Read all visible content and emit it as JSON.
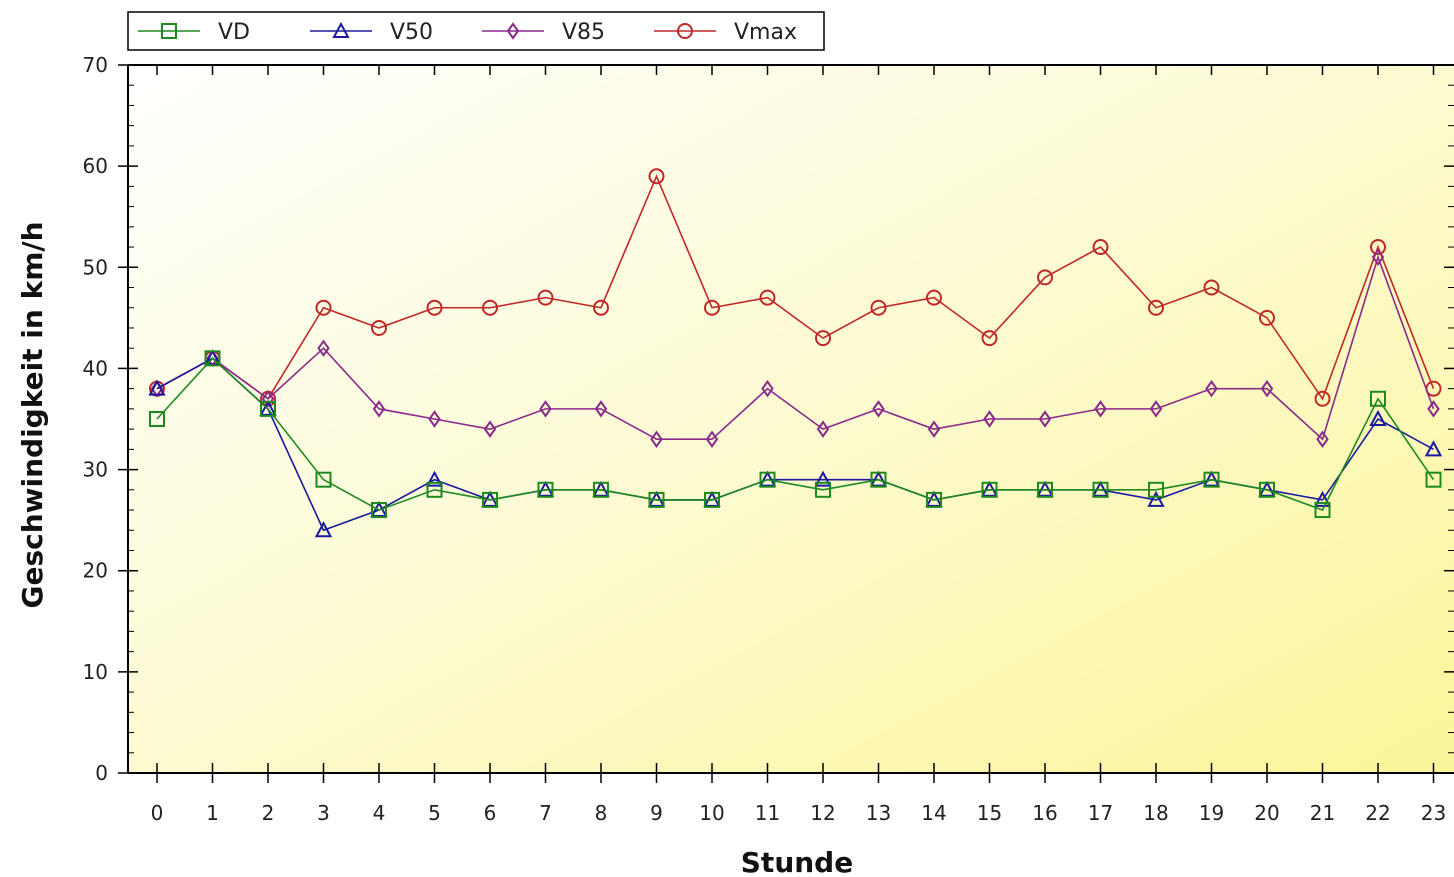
{
  "chart_data": {
    "type": "line",
    "xlabel": "Stunde",
    "ylabel": "Geschwindigkeit in km/h",
    "x": [
      0,
      1,
      2,
      3,
      4,
      5,
      6,
      7,
      8,
      9,
      10,
      11,
      12,
      13,
      14,
      15,
      16,
      17,
      18,
      19,
      20,
      21,
      22,
      23
    ],
    "ylim": [
      0,
      70
    ],
    "yticks": [
      0,
      10,
      20,
      30,
      40,
      50,
      60,
      70
    ],
    "grid": false,
    "legend_position": "top-left",
    "background": "yellow gradient",
    "series": [
      {
        "name": "VD",
        "color": "#1e8a1e",
        "marker": "square",
        "values": [
          35,
          41,
          36,
          29,
          26,
          28,
          27,
          28,
          28,
          27,
          27,
          29,
          28,
          29,
          27,
          28,
          28,
          28,
          28,
          29,
          28,
          26,
          37,
          29
        ]
      },
      {
        "name": "V50",
        "color": "#1a1aa0",
        "marker": "triangle",
        "values": [
          38,
          41,
          36,
          24,
          26,
          29,
          27,
          28,
          28,
          27,
          27,
          29,
          29,
          29,
          27,
          28,
          28,
          28,
          27,
          29,
          28,
          27,
          35,
          32
        ]
      },
      {
        "name": "V85",
        "color": "#8a2a8a",
        "marker": "diamond",
        "values": [
          38,
          41,
          37,
          42,
          36,
          35,
          34,
          36,
          36,
          33,
          33,
          38,
          34,
          36,
          34,
          35,
          35,
          36,
          36,
          38,
          38,
          33,
          51,
          36
        ]
      },
      {
        "name": "Vmax",
        "color": "#c02828",
        "marker": "circle",
        "values": [
          38,
          41,
          37,
          46,
          44,
          46,
          46,
          47,
          46,
          59,
          46,
          47,
          43,
          46,
          47,
          43,
          49,
          52,
          46,
          48,
          45,
          37,
          52,
          38
        ]
      }
    ]
  }
}
